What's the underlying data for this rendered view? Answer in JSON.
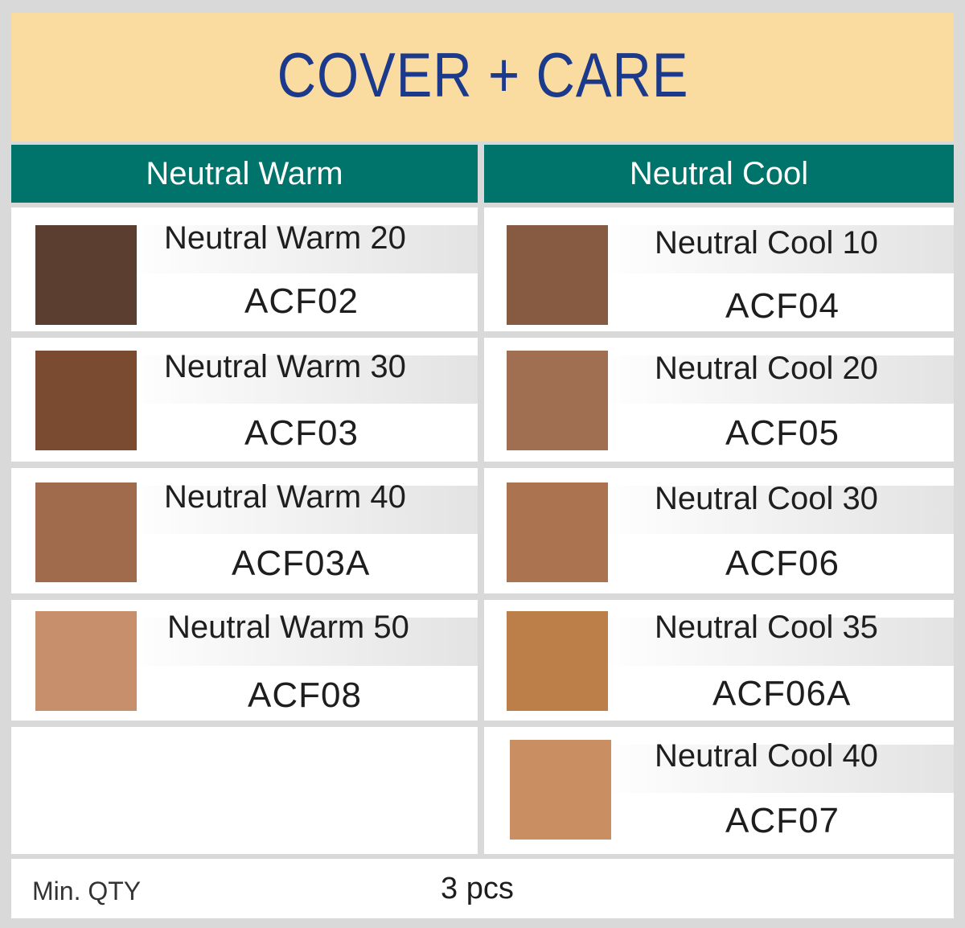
{
  "title": "COVER + CARE",
  "columns": {
    "warm": {
      "header": "Neutral Warm",
      "items": [
        {
          "name": "Neutral Warm 20",
          "code": "ACF02",
          "color": "#5c3e31"
        },
        {
          "name": "Neutral Warm 30",
          "code": "ACF03",
          "color": "#7a4b31"
        },
        {
          "name": "Neutral Warm 40",
          "code": "ACF03A",
          "color": "#a06a4c"
        },
        {
          "name": "Neutral Warm 50",
          "code": "ACF08",
          "color": "#c88f6c"
        }
      ]
    },
    "cool": {
      "header": "Neutral Cool",
      "items": [
        {
          "name": "Neutral Cool 10",
          "code": "ACF04",
          "color": "#875b42"
        },
        {
          "name": "Neutral Cool 20",
          "code": "ACF05",
          "color": "#a06f52"
        },
        {
          "name": "Neutral Cool 30",
          "code": "ACF06",
          "color": "#ac7351"
        },
        {
          "name": "Neutral Cool 35",
          "code": "ACF06A",
          "color": "#bd7f4a"
        },
        {
          "name": "Neutral Cool 40",
          "code": "ACF07",
          "color": "#c98f62"
        }
      ]
    }
  },
  "footer": {
    "label": "Min. QTY",
    "value": "3 pcs"
  }
}
